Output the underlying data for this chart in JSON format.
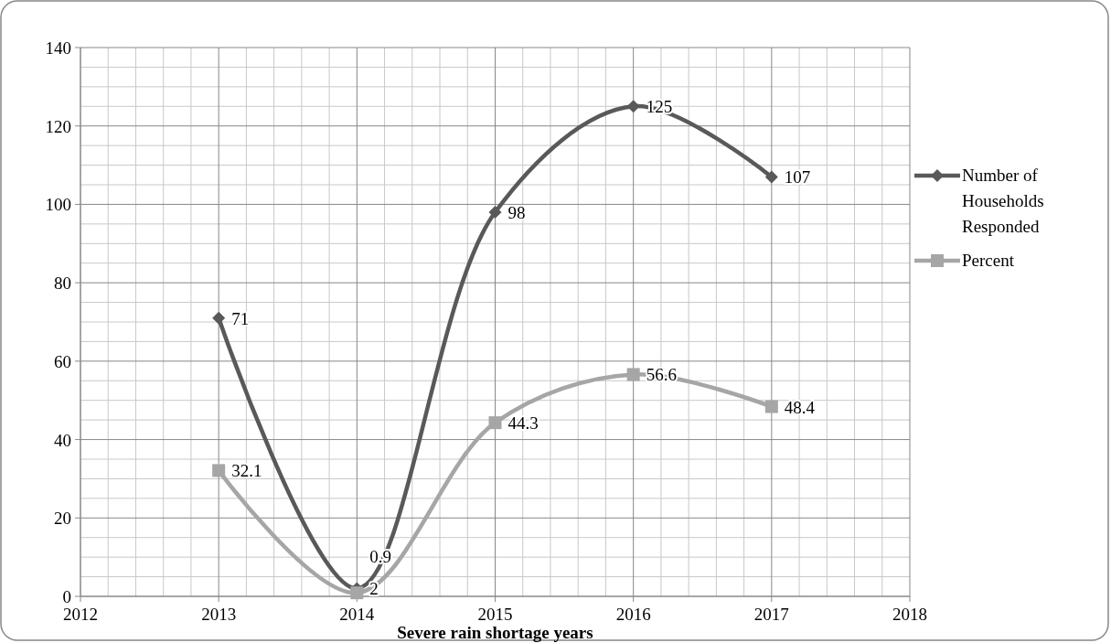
{
  "chart_data": {
    "type": "line",
    "xlabel": "Severe rain shortage years",
    "x": [
      2013,
      2014,
      2015,
      2016,
      2017
    ],
    "series": [
      {
        "name": "Number of Households Responded",
        "color": "#595959",
        "marker": "diamond",
        "values": [
          71,
          2,
          98,
          125,
          107
        ]
      },
      {
        "name": "Percent",
        "color": "#a6a6a6",
        "marker": "square",
        "values": [
          32.1,
          0.9,
          44.3,
          56.6,
          48.4
        ]
      }
    ],
    "xlim": [
      2012,
      2018
    ],
    "xticks": [
      2012,
      2013,
      2014,
      2015,
      2016,
      2017,
      2018
    ],
    "ylim": [
      0,
      140
    ],
    "yticks": [
      0,
      20,
      40,
      60,
      80,
      100,
      120,
      140
    ],
    "grid": true,
    "legend": "right",
    "data_labels": true,
    "line_style": "solid"
  }
}
